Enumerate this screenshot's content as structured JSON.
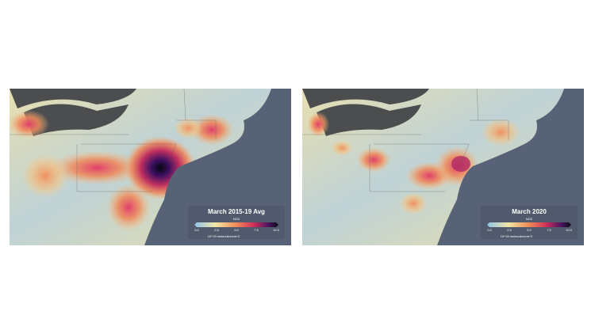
{
  "maps": [
    {
      "title": "March 2015-19 Avg",
      "colorbar": {
        "label": "NO2",
        "ticks": [
          "0.0",
          "2.5",
          "5.0",
          "7.5",
          "10.0"
        ],
        "unit": "10^15 molecules/cm^2"
      }
    },
    {
      "title": "March 2020",
      "colorbar": {
        "label": "NO2",
        "ticks": [
          "0.0",
          "2.5",
          "5.0",
          "7.5",
          "10.0"
        ],
        "unit": "10^15 molecules/cm^2"
      }
    }
  ]
}
